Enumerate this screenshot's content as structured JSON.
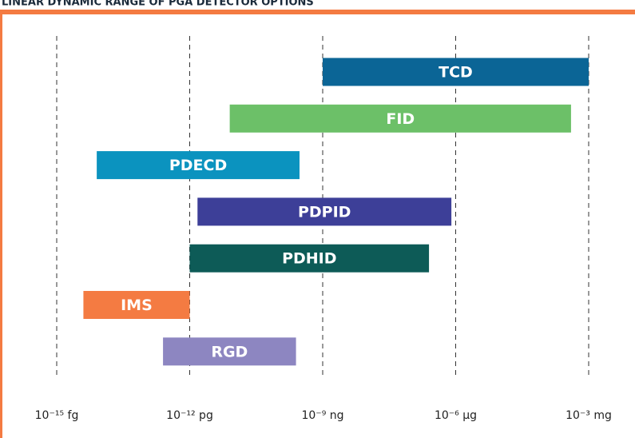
{
  "chart_data": {
    "type": "range-bar",
    "title": "LINEAR DYNAMIC RANGE OF PGA DETECTOR OPTIONS",
    "categories": [
      "TCD",
      "FID",
      "PDECD",
      "PDPID",
      "PDHID",
      "IMS",
      "RGD"
    ],
    "low": [
      1e-09,
      8e-12,
      8e-15,
      1.5e-12,
      1e-12,
      4e-15,
      2.5e-13
    ],
    "high": [
      0.001,
      0.0004,
      3e-10,
      8e-07,
      2.5e-07,
      1e-12,
      2.5e-10
    ],
    "colors": [
      "#0b6596",
      "#6cc068",
      "#0b93bf",
      "#3d3f98",
      "#0d5b57",
      "#f47b42",
      "#8d86c1"
    ],
    "xlim": [
      1e-15,
      0.001
    ],
    "log": true,
    "grid": true,
    "xticks": [
      {
        "value": 1e-15,
        "label": "10⁻¹⁵ fg"
      },
      {
        "value": 1e-12,
        "label": "10⁻¹² pg"
      },
      {
        "value": 1e-09,
        "label": "10⁻⁹ ng"
      },
      {
        "value": 1e-06,
        "label": "10⁻⁶ µg"
      },
      {
        "value": 0.001,
        "label": "10⁻³ mg"
      }
    ]
  }
}
